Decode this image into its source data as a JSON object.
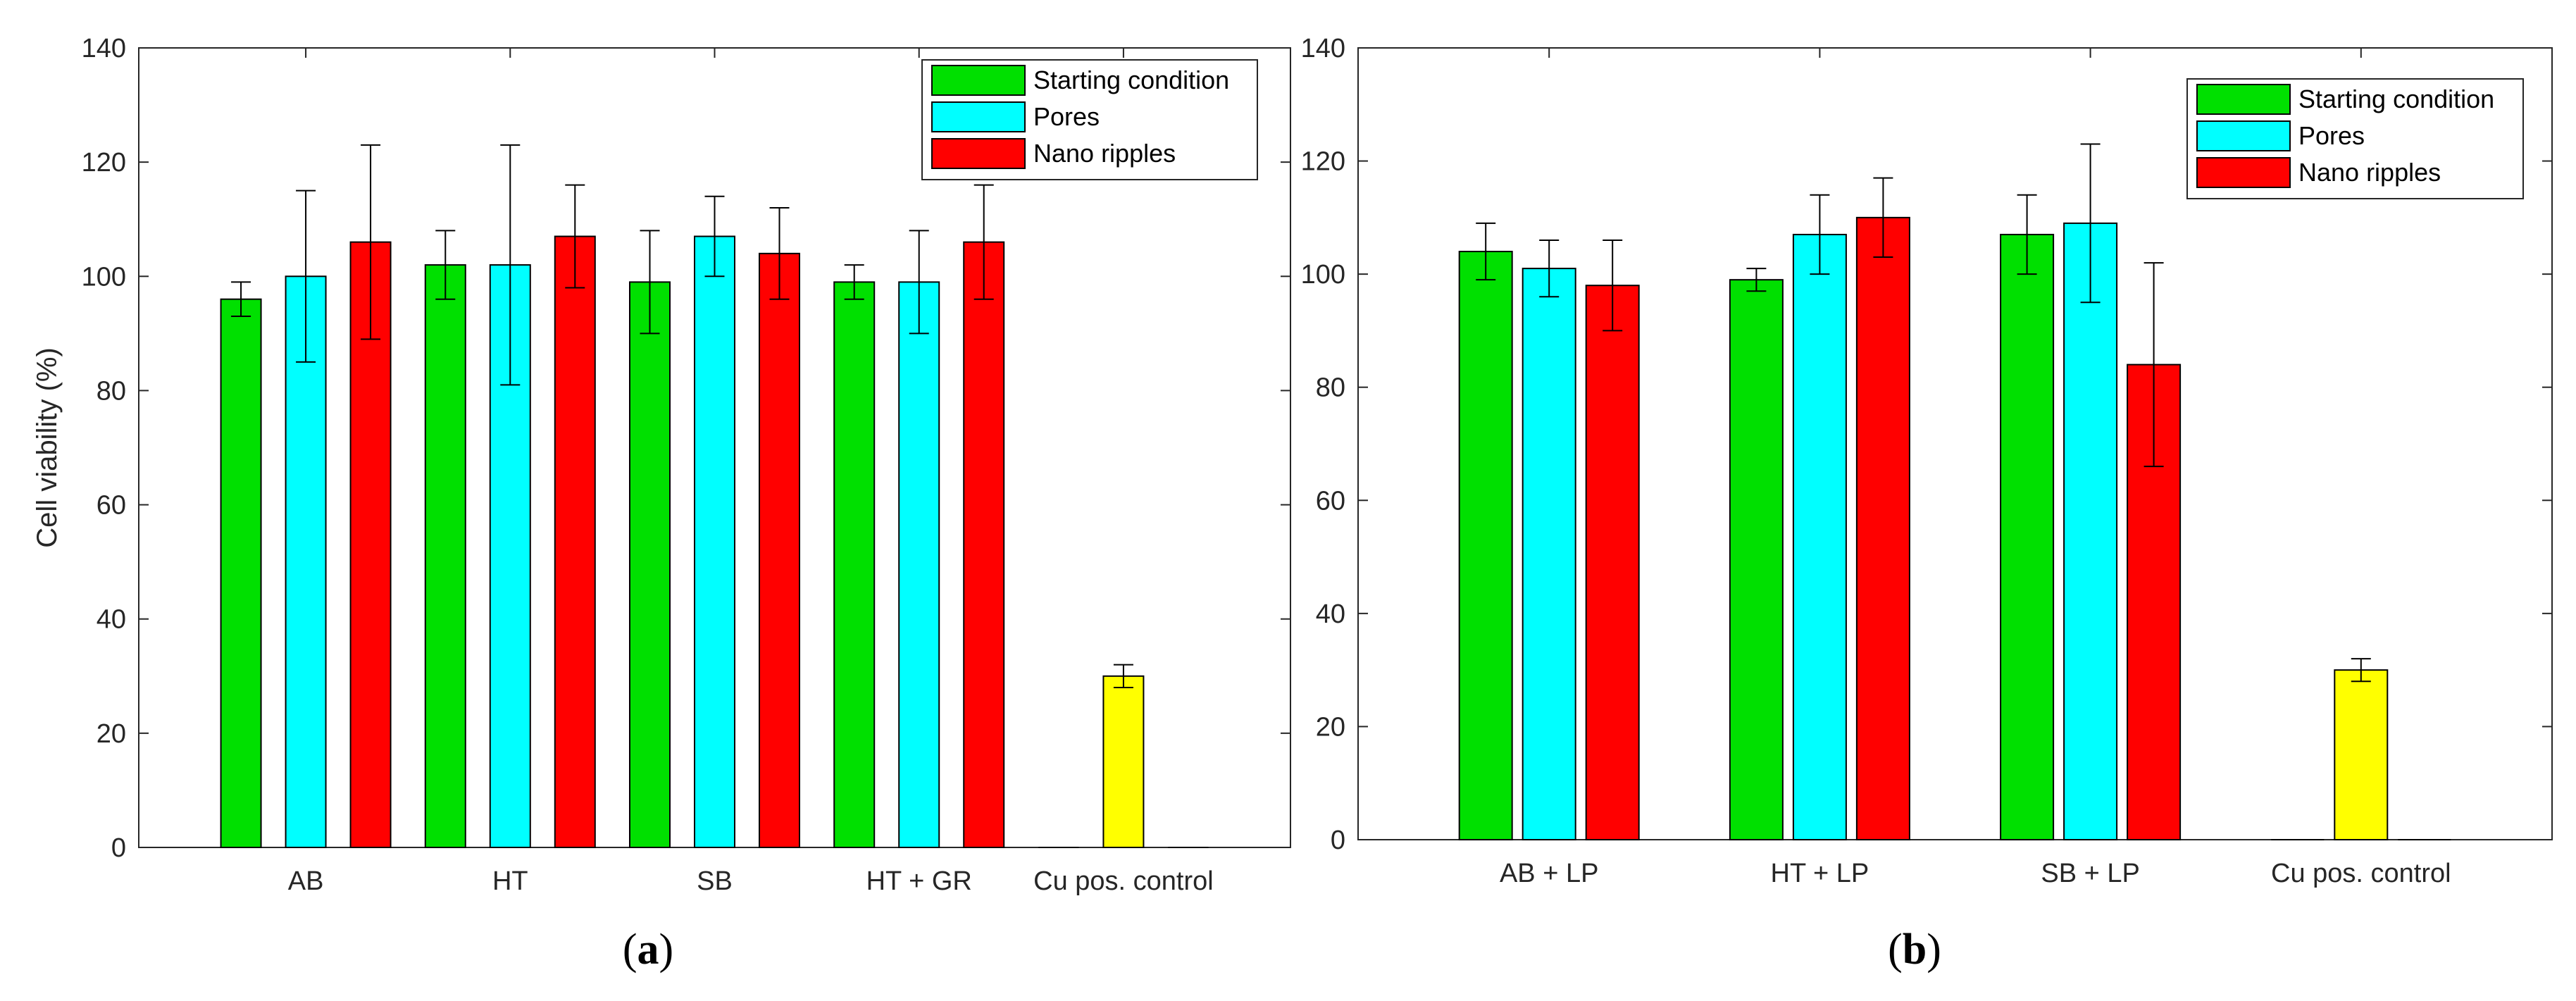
{
  "chart_data": [
    {
      "type": "bar",
      "panel_label": "a",
      "title": "",
      "xlabel": "",
      "ylabel": "Cell viability (%)",
      "ylim": [
        0,
        140
      ],
      "yticks": [
        0,
        20,
        40,
        60,
        80,
        100,
        120,
        140
      ],
      "grid": false,
      "legend": "top-right",
      "categories": [
        "AB",
        "HT",
        "SB",
        "HT + GR",
        "Cu pos. control"
      ],
      "series": [
        {
          "name": "Starting condition",
          "color": "#00e000",
          "values": [
            96,
            102,
            99,
            99,
            0
          ],
          "errors": [
            3,
            6,
            9,
            3,
            0
          ]
        },
        {
          "name": "Pores",
          "color": "#00ffff",
          "values": [
            100,
            102,
            107,
            99,
            0
          ],
          "errors": [
            15,
            21,
            7,
            9,
            0
          ]
        },
        {
          "name": "Nano ripples",
          "color": "#ff0000",
          "values": [
            106,
            107,
            104,
            106,
            0
          ],
          "errors": [
            17,
            9,
            8,
            10,
            0
          ]
        }
      ],
      "control": {
        "category": "Cu pos. control",
        "value": 30,
        "error": 2,
        "color": "#ffff00"
      }
    },
    {
      "type": "bar",
      "panel_label": "b",
      "title": "",
      "xlabel": "",
      "ylabel": "",
      "ylim": [
        0,
        140
      ],
      "yticks": [
        0,
        20,
        40,
        60,
        80,
        100,
        120,
        140
      ],
      "grid": false,
      "legend": "top-right",
      "categories": [
        "AB + LP",
        "HT + LP",
        "SB + LP",
        "Cu pos. control"
      ],
      "series": [
        {
          "name": "Starting condition",
          "color": "#00e000",
          "values": [
            104,
            99,
            107,
            0
          ],
          "errors": [
            5,
            2,
            7,
            0
          ]
        },
        {
          "name": "Pores",
          "color": "#00ffff",
          "values": [
            101,
            107,
            109,
            0
          ],
          "errors": [
            5,
            7,
            14,
            0
          ]
        },
        {
          "name": "Nano ripples",
          "color": "#ff0000",
          "values": [
            98,
            110,
            84,
            0
          ],
          "errors": [
            8,
            7,
            18,
            0
          ]
        }
      ],
      "control": {
        "category": "Cu pos. control",
        "value": 30,
        "error": 2,
        "color": "#ffff00"
      }
    }
  ]
}
